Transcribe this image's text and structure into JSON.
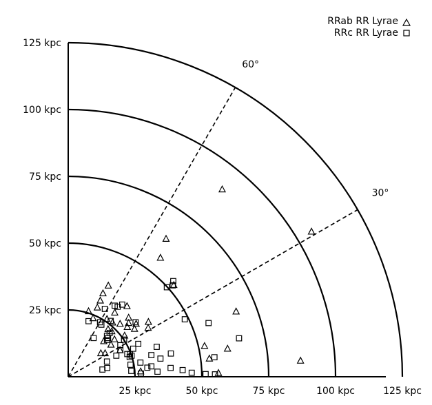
{
  "chart_data": {
    "type": "scatter",
    "title": "",
    "xlabel": "",
    "ylabel": "",
    "unit": "kpc",
    "xlim": [
      0,
      125
    ],
    "ylim": [
      0,
      125
    ],
    "grid": false,
    "radial_rings": [
      25,
      50,
      75,
      100,
      125
    ],
    "x_ticks": [
      "25 kpc",
      "50 kpc",
      "75 kpc",
      "100 kpc",
      "125 kpc"
    ],
    "y_ticks": [
      "25 kpc",
      "50 kpc",
      "75 kpc",
      "100 kpc",
      "125 kpc"
    ],
    "angle_lines": [
      {
        "angle": 30,
        "label": "30°"
      },
      {
        "angle": 60,
        "label": "60°"
      }
    ],
    "legend_position": "top-right",
    "series": [
      {
        "name": "RRab RR Lyrae",
        "marker": "triangle",
        "points": [
          [
            57.6,
            70.2
          ],
          [
            91.0,
            54.4
          ],
          [
            86.9,
            6.1
          ],
          [
            36.6,
            51.7
          ],
          [
            34.5,
            44.6
          ],
          [
            39.5,
            34.4
          ],
          [
            62.8,
            24.5
          ],
          [
            15.0,
            34.2
          ],
          [
            13.0,
            31.3
          ],
          [
            12.0,
            28.6
          ],
          [
            10.9,
            26.0
          ],
          [
            7.6,
            24.6
          ],
          [
            17.4,
            24.1
          ],
          [
            22.0,
            26.5
          ],
          [
            9.3,
            22.0
          ],
          [
            14.5,
            21.7
          ],
          [
            22.6,
            22.2
          ],
          [
            16.6,
            20.4
          ],
          [
            22.6,
            20.2
          ],
          [
            25.4,
            19.9
          ],
          [
            19.4,
            19.9
          ],
          [
            22.1,
            18.7
          ],
          [
            14.9,
            17.9
          ],
          [
            29.9,
            18.4
          ],
          [
            24.8,
            18.0
          ],
          [
            16.3,
            17.1
          ],
          [
            21.1,
            15.5
          ],
          [
            17.3,
            14.1
          ],
          [
            16.0,
            12.1
          ],
          [
            19.4,
            10.0
          ],
          [
            13.8,
            8.9
          ],
          [
            12.2,
            8.9
          ],
          [
            13.3,
            13.4
          ],
          [
            51.0,
            11.6
          ],
          [
            59.6,
            10.6
          ],
          [
            52.8,
            6.9
          ],
          [
            27.1,
            2.1
          ],
          [
            56.2,
            1.5
          ],
          [
            30.0,
            20.6
          ]
        ]
      },
      {
        "name": "RRc RR Lyrae",
        "marker": "square",
        "points": [
          [
            39.3,
            35.8
          ],
          [
            39.1,
            34.2
          ],
          [
            36.9,
            33.5
          ],
          [
            20.2,
            27.0
          ],
          [
            17.4,
            26.6
          ],
          [
            18.5,
            26.2
          ],
          [
            13.7,
            25.4
          ],
          [
            43.6,
            21.5
          ],
          [
            15.9,
            20.9
          ],
          [
            7.6,
            20.8
          ],
          [
            11.9,
            20.4
          ],
          [
            25.2,
            20.4
          ],
          [
            52.5,
            20.1
          ],
          [
            12.4,
            19.5
          ],
          [
            15.5,
            16.4
          ],
          [
            63.9,
            14.4
          ],
          [
            14.5,
            15.3
          ],
          [
            14.9,
            14.5
          ],
          [
            14.5,
            13.8
          ],
          [
            26.2,
            12.3
          ],
          [
            19.5,
            10.0
          ],
          [
            22.1,
            8.5
          ],
          [
            54.7,
            7.3
          ],
          [
            31.1,
            8.1
          ],
          [
            38.4,
            8.7
          ],
          [
            23.0,
            7.4
          ],
          [
            34.5,
            6.8
          ],
          [
            23.7,
            7.9
          ],
          [
            18.0,
            7.9
          ],
          [
            14.5,
            5.7
          ],
          [
            23.3,
            4.5
          ],
          [
            27.0,
            5.3
          ],
          [
            42.8,
            2.5
          ],
          [
            12.8,
            2.7
          ],
          [
            23.6,
            2.2
          ],
          [
            33.4,
            1.9
          ],
          [
            46.2,
            1.5
          ],
          [
            51.4,
            1.0
          ],
          [
            54.9,
            0.9
          ],
          [
            33.1,
            11.2
          ],
          [
            20.9,
            13.9
          ],
          [
            19.5,
            11.8
          ],
          [
            24.3,
            10.5
          ],
          [
            31.1,
            3.9
          ],
          [
            27.2,
            1.2
          ],
          [
            29.6,
            3.4
          ],
          [
            9.5,
            14.5
          ],
          [
            14.6,
            3.3
          ],
          [
            23.1,
            8.5
          ],
          [
            38.3,
            3.3
          ]
        ]
      }
    ]
  }
}
